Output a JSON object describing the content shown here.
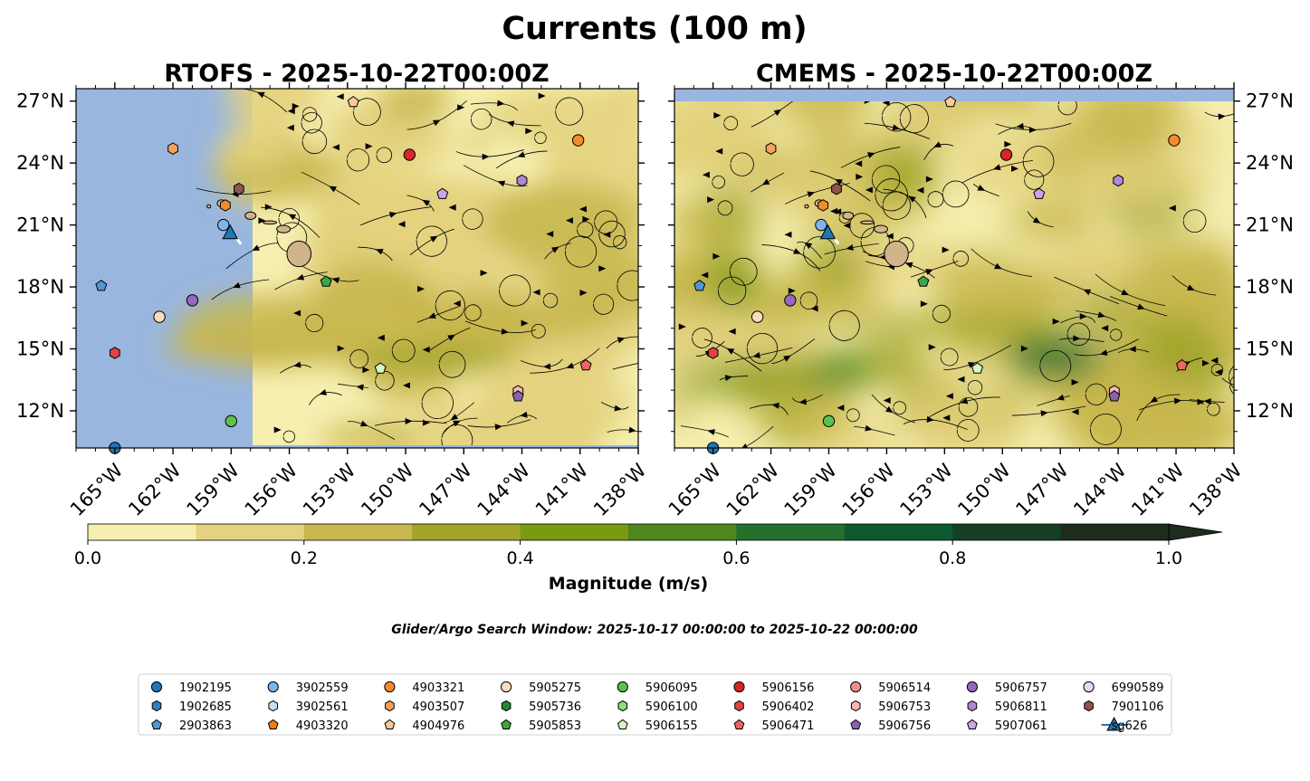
{
  "figure": {
    "title": "Currents (100 m)",
    "search_window": "Glider/Argo Search Window: 2025-10-17 00:00:00 to 2025-10-22 00:00:00"
  },
  "colors": {
    "land": "#d2b48c",
    "no_data": "#99b6df",
    "colorbar": [
      "#f6efb0",
      "#e4d27e",
      "#c8b74e",
      "#a1a52a",
      "#7a9a12",
      "#4e871e",
      "#25702d",
      "#0d5a30",
      "#163f27",
      "#1d2c1c"
    ]
  },
  "colorbar": {
    "label": "Magnitude (m/s)",
    "ticks": [
      "0.0",
      "0.2",
      "0.4",
      "0.6",
      "0.8",
      "1.0"
    ],
    "range": [
      0,
      1
    ],
    "bin": 0.1,
    "extend": "max"
  },
  "chart_data": [
    {
      "type": "heatmap",
      "title": "RTOFS - 2025-10-22T00:00Z",
      "xlim": [
        -167,
        -138
      ],
      "ylim": [
        10.2,
        27.6
      ],
      "x_ticks": [
        "165°W",
        "162°W",
        "159°W",
        "156°W",
        "153°W",
        "150°W",
        "147°W",
        "144°W",
        "141°W",
        "138°W"
      ],
      "x_tick_values": [
        -165,
        -162,
        -159,
        -156,
        -153,
        -150,
        -147,
        -144,
        -141,
        -138
      ],
      "y_ticks": [
        "27°N",
        "24°N",
        "21°N",
        "18°N",
        "15°N",
        "12°N"
      ],
      "y_tick_values": [
        27,
        24,
        21,
        18,
        15,
        12
      ],
      "y_tick_side": "left",
      "data_west_limit": -158,
      "typical_magnitude": "0.0-0.3 m/s",
      "max_magnitude": 0.4
    },
    {
      "type": "heatmap",
      "title": "CMEMS - 2025-10-22T00:00Z",
      "xlim": [
        -167,
        -138
      ],
      "ylim": [
        10.2,
        27.6
      ],
      "x_ticks": [
        "165°W",
        "162°W",
        "159°W",
        "156°W",
        "153°W",
        "150°W",
        "147°W",
        "144°W",
        "141°W",
        "138°W"
      ],
      "x_tick_values": [
        -165,
        -162,
        -159,
        -156,
        -153,
        -150,
        -147,
        -144,
        -141,
        -138
      ],
      "y_ticks": [
        "27°N",
        "24°N",
        "21°N",
        "18°N",
        "15°N",
        "12°N"
      ],
      "y_tick_values": [
        27,
        24,
        21,
        18,
        15,
        12
      ],
      "y_tick_side": "right",
      "data_north_limit": 27,
      "typical_magnitude": "0.0-0.4 m/s",
      "max_magnitude": 0.7
    }
  ],
  "legend": {
    "entries": [
      {
        "id": "1902195",
        "marker": "circle",
        "color": "#1f77b4",
        "lon": -165.0,
        "lat": 10.2
      },
      {
        "id": "1902685",
        "marker": "hexagon",
        "color": "#2f7fc1"
      },
      {
        "id": "2903863",
        "marker": "pentagon",
        "color": "#4f97d4",
        "lon": -165.7,
        "lat": 18.05
      },
      {
        "id": "3902559",
        "marker": "circle",
        "color": "#7db4ea",
        "lon": -159.4,
        "lat": 21.0
      },
      {
        "id": "3902561",
        "marker": "hexagon",
        "color": "#bfe0fb"
      },
      {
        "id": "4903320",
        "marker": "pentagon",
        "color": "#f07d12"
      },
      {
        "id": "4903321",
        "marker": "circle",
        "color": "#f28b2c",
        "lon": -141.1,
        "lat": 25.1
      },
      {
        "id": "4903507",
        "marker": "hexagon",
        "color": "#f5a15a",
        "lon": -162.0,
        "lat": 24.7
      },
      {
        "id": "4904976",
        "marker": "pentagon",
        "color": "#fcc89b",
        "lon": -152.7,
        "lat": 26.95
      },
      {
        "id": "5905275",
        "marker": "circle",
        "color": "#fddcbd",
        "lon": -162.7,
        "lat": 16.55
      },
      {
        "id": "5905736",
        "marker": "hexagon",
        "color": "#238b2b"
      },
      {
        "id": "5905853",
        "marker": "pentagon",
        "color": "#39a844",
        "lon": -154.1,
        "lat": 18.25
      },
      {
        "id": "5906095",
        "marker": "circle",
        "color": "#5ec04f",
        "lon": -159.0,
        "lat": 11.5
      },
      {
        "id": "5906100",
        "marker": "hexagon",
        "color": "#8fdc7e"
      },
      {
        "id": "5906155",
        "marker": "pentagon",
        "color": "#d6f5c8",
        "lon": -151.3,
        "lat": 14.05
      },
      {
        "id": "5906156",
        "marker": "circle",
        "color": "#d62728",
        "lon": -149.8,
        "lat": 24.4
      },
      {
        "id": "5906402",
        "marker": "hexagon",
        "color": "#e04344",
        "lon": -165.0,
        "lat": 14.8
      },
      {
        "id": "5906471",
        "marker": "pentagon",
        "color": "#ef6464",
        "lon": -140.7,
        "lat": 14.2
      },
      {
        "id": "5906514",
        "marker": "circle",
        "color": "#f28d8d"
      },
      {
        "id": "5906753",
        "marker": "hexagon",
        "color": "#f8b7b5",
        "lon": -144.2,
        "lat": 12.95
      },
      {
        "id": "5906756",
        "marker": "pentagon",
        "color": "#8c61b0",
        "lon": -144.2,
        "lat": 12.7
      },
      {
        "id": "5906757",
        "marker": "circle",
        "color": "#9568c2",
        "lon": -161.0,
        "lat": 17.35
      },
      {
        "id": "5906811",
        "marker": "hexagon",
        "color": "#ae88d3",
        "lon": -144.0,
        "lat": 23.15
      },
      {
        "id": "5907061",
        "marker": "pentagon",
        "color": "#c9a5ea",
        "lon": -148.1,
        "lat": 22.5
      },
      {
        "id": "6990589",
        "marker": "circle",
        "color": "#e8d6f7"
      },
      {
        "id": "7901106",
        "marker": "hexagon",
        "color": "#8c564b",
        "lon": -158.6,
        "lat": 22.75
      },
      {
        "id": "sg626",
        "marker": "triangle",
        "color": "#1f77b4",
        "lon": -159.05,
        "lat": 20.6,
        "track": true
      }
    ],
    "extra_positions": [
      {
        "marker": "hexagon",
        "color": "#f28b2c",
        "lon": -159.3,
        "lat": 21.95
      }
    ]
  },
  "islands": [
    {
      "name": "Hawaii",
      "lon": -155.5,
      "lat": 19.6,
      "rx": 0.62,
      "ry": 0.62
    },
    {
      "name": "Maui",
      "lon": -156.3,
      "lat": 20.8,
      "rx": 0.35,
      "ry": 0.18
    },
    {
      "name": "Molokai",
      "lon": -157.0,
      "lat": 21.12,
      "rx": 0.35,
      "ry": 0.08
    },
    {
      "name": "Oahu",
      "lon": -158.0,
      "lat": 21.45,
      "rx": 0.28,
      "ry": 0.18
    },
    {
      "name": "Kauai",
      "lon": -159.5,
      "lat": 22.05,
      "rx": 0.22,
      "ry": 0.17
    },
    {
      "name": "Niihau",
      "lon": -160.15,
      "lat": 21.9,
      "rx": 0.1,
      "ry": 0.08
    }
  ]
}
